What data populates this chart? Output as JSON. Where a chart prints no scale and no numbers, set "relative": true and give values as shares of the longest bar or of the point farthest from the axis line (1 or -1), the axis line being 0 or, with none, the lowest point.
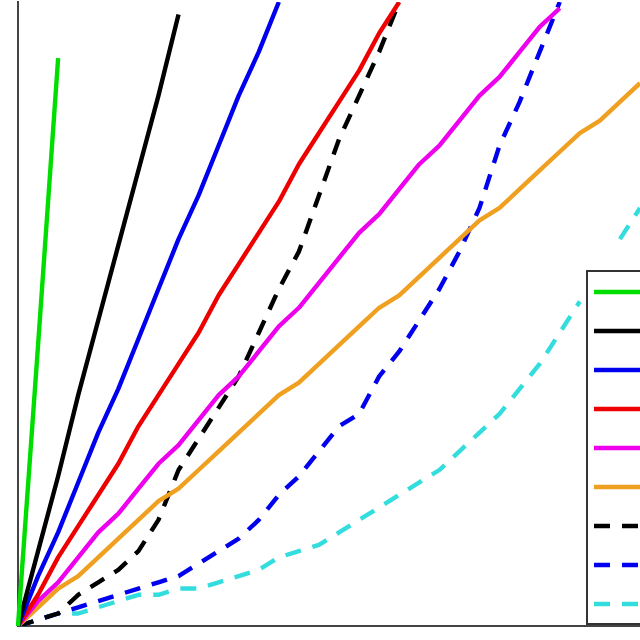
{
  "chart_data": {
    "type": "line",
    "relative": true,
    "tick_labels": false,
    "grid": false,
    "marker": "none",
    "categories": [
      null,
      null,
      null,
      null,
      null,
      null,
      null,
      null,
      null,
      null,
      null,
      null,
      null,
      null,
      null,
      null,
      null,
      null,
      null,
      null,
      null,
      null,
      null,
      null,
      null,
      null,
      null,
      null,
      null,
      null,
      null,
      null
    ],
    "series": [
      {
        "color": "#00dd00",
        "line_style": "solid",
        "values": [
          0,
          0.45,
          0.91,
          null,
          null,
          null,
          null,
          null,
          null,
          null,
          null,
          null,
          null,
          null,
          null,
          null,
          null,
          null,
          null,
          null,
          null,
          null,
          null,
          null,
          null,
          null,
          null,
          null,
          null,
          null,
          null,
          null
        ]
      },
      {
        "color": "#000000",
        "line_style": "solid",
        "values": [
          0,
          0.12,
          0.24,
          0.37,
          0.49,
          0.61,
          0.73,
          0.85,
          0.98,
          null,
          null,
          null,
          null,
          null,
          null,
          null,
          null,
          null,
          null,
          null,
          null,
          null,
          null,
          null,
          null,
          null,
          null,
          null,
          null,
          null,
          null,
          null
        ]
      },
      {
        "color": "#0000ee",
        "line_style": "solid",
        "values": [
          0,
          0.08,
          0.15,
          0.23,
          0.31,
          0.38,
          0.46,
          0.54,
          0.62,
          0.69,
          0.77,
          0.85,
          0.92,
          1.0,
          null,
          null,
          null,
          null,
          null,
          null,
          null,
          null,
          null,
          null,
          null,
          null,
          null,
          null,
          null,
          null,
          null,
          null
        ]
      },
      {
        "color": "#ee0000",
        "line_style": "solid",
        "values": [
          0,
          0.05,
          0.11,
          0.16,
          0.21,
          0.26,
          0.32,
          0.37,
          0.42,
          0.47,
          0.53,
          0.58,
          0.63,
          0.68,
          0.74,
          0.79,
          0.84,
          0.89,
          0.95,
          1.0,
          null,
          null,
          null,
          null,
          null,
          null,
          null,
          null,
          null,
          null,
          null,
          null
        ]
      },
      {
        "color": "#ee00ee",
        "line_style": "solid",
        "values": [
          0,
          0.04,
          0.07,
          0.11,
          0.15,
          0.18,
          0.22,
          0.26,
          0.29,
          0.33,
          0.37,
          0.4,
          0.44,
          0.48,
          0.51,
          0.55,
          0.59,
          0.63,
          0.66,
          0.7,
          0.74,
          0.77,
          0.81,
          0.85,
          0.88,
          0.92,
          0.96,
          0.99,
          null,
          null,
          null,
          null
        ]
      },
      {
        "color": "#f0a020",
        "line_style": "solid",
        "values": [
          0,
          0.03,
          0.06,
          0.08,
          0.11,
          0.14,
          0.17,
          0.2,
          0.22,
          0.25,
          0.28,
          0.31,
          0.34,
          0.37,
          0.39,
          0.42,
          0.45,
          0.48,
          0.51,
          0.53,
          0.56,
          0.59,
          0.62,
          0.65,
          0.67,
          0.7,
          0.73,
          0.76,
          0.79,
          0.81,
          0.84,
          0.87
        ]
      },
      {
        "color": "#000000",
        "line_style": "dashed",
        "values": [
          0,
          0.01,
          0.02,
          0.05,
          0.07,
          0.09,
          0.12,
          0.17,
          0.25,
          0.3,
          0.35,
          0.4,
          0.47,
          0.54,
          0.6,
          0.69,
          0.78,
          0.85,
          0.92,
          1.0,
          null,
          null,
          null,
          null,
          null,
          null,
          null,
          null,
          null,
          null,
          null,
          null
        ]
      },
      {
        "color": "#0000ee",
        "line_style": "dashed",
        "values": [
          0,
          0.01,
          0.02,
          0.03,
          0.04,
          0.05,
          0.06,
          0.07,
          0.08,
          0.1,
          0.12,
          0.14,
          0.17,
          0.21,
          0.24,
          0.28,
          0.32,
          0.34,
          0.4,
          0.44,
          0.49,
          0.54,
          0.6,
          0.67,
          0.77,
          0.84,
          0.92,
          1.0,
          null,
          null,
          null,
          null
        ]
      },
      {
        "color": "#33dddd",
        "line_style": "dashed",
        "values": [
          0,
          0.01,
          0.02,
          0.02,
          0.03,
          0.04,
          0.05,
          0.05,
          0.06,
          0.06,
          0.07,
          0.08,
          0.09,
          0.11,
          0.12,
          0.13,
          0.15,
          0.17,
          0.19,
          0.21,
          0.23,
          0.25,
          0.28,
          0.31,
          0.34,
          0.38,
          0.42,
          0.47,
          0.52,
          null,
          0.62,
          0.67
        ]
      }
    ]
  }
}
